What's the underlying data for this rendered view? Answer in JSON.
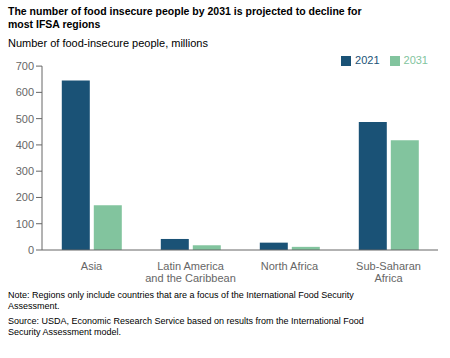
{
  "chart_data": {
    "type": "bar",
    "title": "The number of food insecure people by 2031 is projected to decline for\nmost IFSA regions",
    "ylabel": "Number of food-insecure people, millions",
    "categories": [
      "Asia",
      "Latin America\nand the Caribbean",
      "North Africa",
      "Sub-Saharan\nAfrica"
    ],
    "series": [
      {
        "name": "2021",
        "color": "#1a5276",
        "values": [
          645,
          42,
          28,
          487
        ]
      },
      {
        "name": "2031",
        "color": "#82c49e",
        "values": [
          170,
          18,
          12,
          418
        ]
      }
    ],
    "ylim": [
      0,
      700
    ],
    "yticks": [
      0,
      100,
      200,
      300,
      400,
      500,
      600,
      700
    ],
    "grid": false,
    "legend": "upper right",
    "annotations": [
      "Note: Regions only include countries that are a focus of the International Food Security\nAssessment.",
      "Source: USDA, Economic Research Service based on results from the International Food\nSecurity Assessment model."
    ]
  }
}
